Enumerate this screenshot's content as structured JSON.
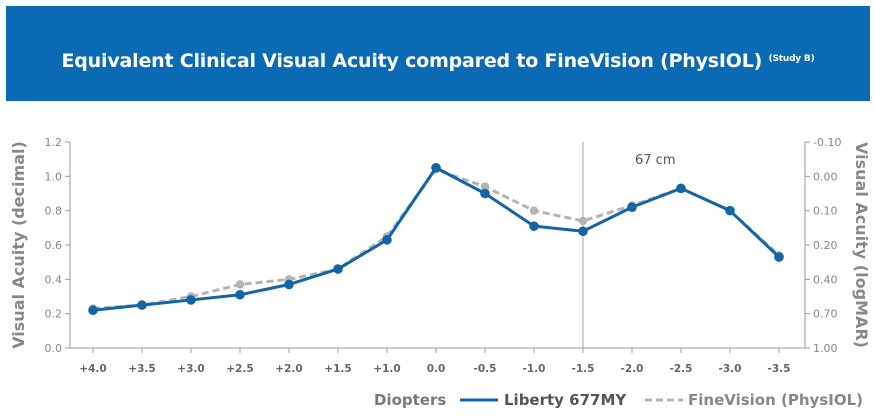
{
  "header": {
    "title": "Equivalent Clinical Visual Acuity compared to FineVision (PhysIOL)",
    "title_sup": "(Study B)",
    "background": "#0a6ab3"
  },
  "chart_data": {
    "type": "line",
    "x": [
      "+4.0",
      "+3.5",
      "+3.0",
      "+2.5",
      "+2.0",
      "+1.5",
      "+1.0",
      "0.0",
      "-0.5",
      "-1.0",
      "-1.5",
      "-2.0",
      "-2.5",
      "-3.0",
      "-3.5"
    ],
    "xlabel": "Diopters",
    "ylabel": "Visual Acuity (decimal)",
    "ylabel_right": "Visual Acuity (logMAR)",
    "ylim": [
      0,
      1.2
    ],
    "yticks": [
      "0.0",
      "0.2",
      "0.4",
      "0.6",
      "0.8",
      "1.0",
      "1.2"
    ],
    "yticks_right": [
      "1.00",
      "0.70",
      "0.40",
      "0.20",
      "0.10",
      "0.00",
      "-0.10"
    ],
    "annotation": {
      "text": "67 cm",
      "x": "-1.5"
    },
    "grid": false,
    "legend_position": "bottom",
    "series": [
      {
        "name": "Liberty 677MY",
        "color": "#1464a8",
        "style": "solid",
        "values": [
          0.22,
          0.25,
          0.28,
          0.31,
          0.37,
          0.46,
          0.63,
          1.05,
          0.9,
          0.71,
          0.68,
          0.82,
          0.93,
          0.8,
          0.53
        ]
      },
      {
        "name": "FineVision (PhysIOL)",
        "color": "#b4b4b4",
        "style": "dashed",
        "values": [
          0.23,
          0.25,
          0.3,
          0.37,
          0.4,
          0.46,
          0.65,
          1.04,
          0.94,
          0.8,
          0.74,
          0.83,
          0.93,
          0.8,
          0.54
        ]
      }
    ]
  }
}
